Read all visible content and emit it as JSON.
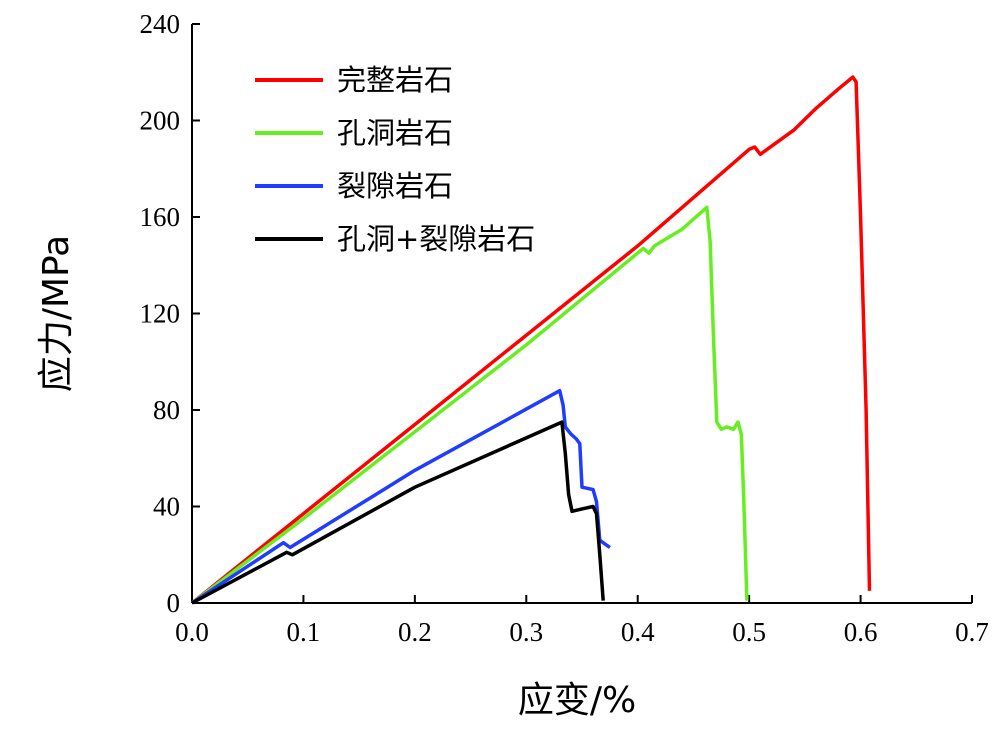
{
  "chart_data": {
    "type": "line",
    "title": "",
    "xlabel": "应变/%",
    "ylabel": "应力/MPa",
    "xlim": [
      0,
      0.7
    ],
    "ylim": [
      0,
      240
    ],
    "xticks": [
      0.0,
      0.1,
      0.2,
      0.3,
      0.4,
      0.5,
      0.6,
      0.7
    ],
    "xtick_labels": [
      "0.0",
      "0.1",
      "0.2",
      "0.3",
      "0.4",
      "0.5",
      "0.6",
      "0.7"
    ],
    "yticks": [
      0,
      40,
      80,
      120,
      160,
      200,
      240
    ],
    "ytick_labels": [
      "0",
      "40",
      "80",
      "120",
      "160",
      "200",
      "240"
    ],
    "grid": false,
    "legend_position": "top-left",
    "series": [
      {
        "name": "完整岩石",
        "color": "#ff0000",
        "points": [
          [
            0,
            0
          ],
          [
            0.1,
            37
          ],
          [
            0.2,
            74
          ],
          [
            0.3,
            111
          ],
          [
            0.4,
            148
          ],
          [
            0.5,
            188
          ],
          [
            0.505,
            189
          ],
          [
            0.51,
            186
          ],
          [
            0.54,
            196
          ],
          [
            0.56,
            205
          ],
          [
            0.58,
            213
          ],
          [
            0.593,
            218
          ],
          [
            0.596,
            216
          ],
          [
            0.6,
            160
          ],
          [
            0.605,
            80
          ],
          [
            0.608,
            5
          ]
        ]
      },
      {
        "name": "孔洞岩石",
        "color": "#66ee22",
        "points": [
          [
            0,
            0
          ],
          [
            0.1,
            35
          ],
          [
            0.2,
            71
          ],
          [
            0.3,
            107
          ],
          [
            0.405,
            147
          ],
          [
            0.41,
            145
          ],
          [
            0.415,
            148
          ],
          [
            0.44,
            155
          ],
          [
            0.462,
            164
          ],
          [
            0.465,
            150
          ],
          [
            0.468,
            110
          ],
          [
            0.471,
            75
          ],
          [
            0.475,
            72
          ],
          [
            0.48,
            73
          ],
          [
            0.486,
            72
          ],
          [
            0.49,
            75
          ],
          [
            0.493,
            70
          ],
          [
            0.495,
            45
          ],
          [
            0.498,
            1
          ]
        ]
      },
      {
        "name": "裂隙岩石",
        "color": "#1f3cff",
        "points": [
          [
            0,
            0
          ],
          [
            0.082,
            25
          ],
          [
            0.088,
            23
          ],
          [
            0.2,
            55
          ],
          [
            0.33,
            88
          ],
          [
            0.333,
            82
          ],
          [
            0.335,
            73
          ],
          [
            0.34,
            70
          ],
          [
            0.345,
            68
          ],
          [
            0.348,
            66
          ],
          [
            0.35,
            48
          ],
          [
            0.36,
            47
          ],
          [
            0.363,
            42
          ],
          [
            0.366,
            26
          ],
          [
            0.375,
            23
          ]
        ]
      },
      {
        "name": "孔洞+裂隙岩石",
        "color": "#000000",
        "points": [
          [
            0,
            0
          ],
          [
            0.085,
            21
          ],
          [
            0.09,
            20
          ],
          [
            0.2,
            48
          ],
          [
            0.332,
            75
          ],
          [
            0.335,
            62
          ],
          [
            0.338,
            45
          ],
          [
            0.341,
            38
          ],
          [
            0.35,
            39
          ],
          [
            0.36,
            40
          ],
          [
            0.363,
            37
          ],
          [
            0.366,
            20
          ],
          [
            0.369,
            1
          ]
        ]
      }
    ]
  }
}
